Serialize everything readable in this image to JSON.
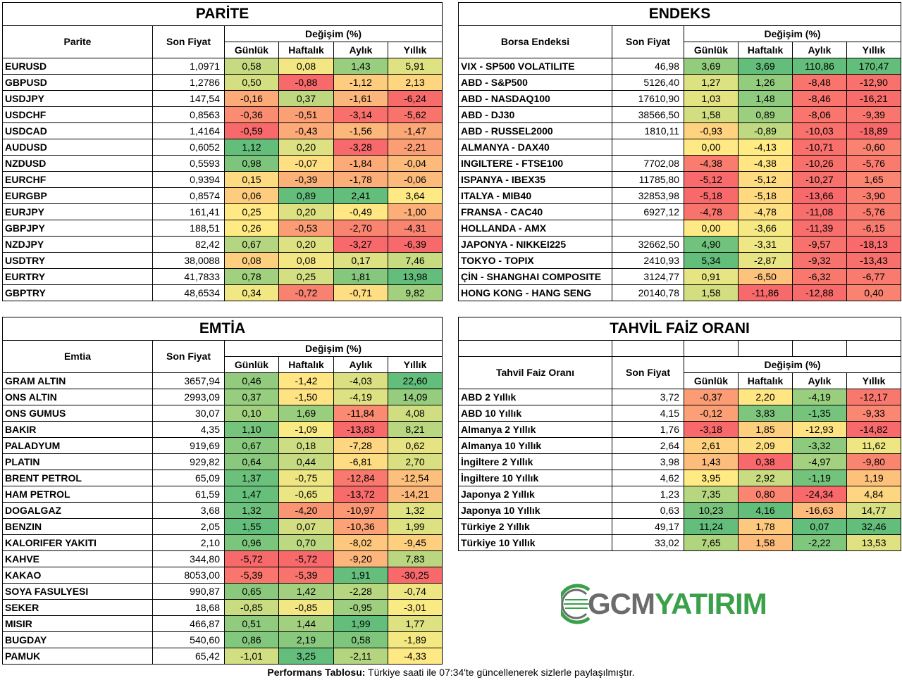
{
  "parite": {
    "title": "PARİTE",
    "col_name": "Parite",
    "col_price": "Son Fiyat",
    "col_change": "Değişim (%)",
    "periods": [
      "Günlük",
      "Haftalık",
      "Aylık",
      "Yıllık"
    ],
    "rows": [
      {
        "name": "EURUSD",
        "price": "1,0971",
        "d": "0,58",
        "w": "0,08",
        "m": "1,43",
        "y": "5,91"
      },
      {
        "name": "GBPUSD",
        "price": "1,2786",
        "d": "0,50",
        "w": "-0,88",
        "m": "-1,12",
        "y": "2,13"
      },
      {
        "name": "USDJPY",
        "price": "147,54",
        "d": "-0,16",
        "w": "0,37",
        "m": "-1,61",
        "y": "-6,24"
      },
      {
        "name": "USDCHF",
        "price": "0,8563",
        "d": "-0,36",
        "w": "-0,51",
        "m": "-3,14",
        "y": "-5,62"
      },
      {
        "name": "USDCAD",
        "price": "1,4164",
        "d": "-0,59",
        "w": "-0,43",
        "m": "-1,56",
        "y": "-1,47"
      },
      {
        "name": "AUDUSD",
        "price": "0,6052",
        "d": "1,12",
        "w": "0,20",
        "m": "-3,28",
        "y": "-2,21"
      },
      {
        "name": "NZDUSD",
        "price": "0,5593",
        "d": "0,98",
        "w": "-0,07",
        "m": "-1,84",
        "y": "-0,04"
      },
      {
        "name": "EURCHF",
        "price": "0,9394",
        "d": "0,15",
        "w": "-0,39",
        "m": "-1,78",
        "y": "-0,06"
      },
      {
        "name": "EURGBP",
        "price": "0,8574",
        "d": "0,06",
        "w": "0,89",
        "m": "2,41",
        "y": "3,64"
      },
      {
        "name": "EURJPY",
        "price": "161,41",
        "d": "0,25",
        "w": "0,20",
        "m": "-0,49",
        "y": "-1,00"
      },
      {
        "name": "GBPJPY",
        "price": "188,51",
        "d": "0,26",
        "w": "-0,53",
        "m": "-2,70",
        "y": "-4,31"
      },
      {
        "name": "NZDJPY",
        "price": "82,42",
        "d": "0,67",
        "w": "0,20",
        "m": "-3,27",
        "y": "-6,39"
      },
      {
        "name": "USDTRY",
        "price": "38,0088",
        "d": "0,08",
        "w": "0,08",
        "m": "0,17",
        "y": "7,46"
      },
      {
        "name": "EURTRY",
        "price": "41,7833",
        "d": "0,78",
        "w": "0,25",
        "m": "1,81",
        "y": "13,98"
      },
      {
        "name": "GBPTRY",
        "price": "48,6534",
        "d": "0,34",
        "w": "-0,72",
        "m": "-0,71",
        "y": "9,82"
      }
    ]
  },
  "endeks": {
    "title": "ENDEKS",
    "col_name": "Borsa Endeksi",
    "col_price": "Son Fiyat",
    "col_change": "Değişim (%)",
    "periods": [
      "Günlük",
      "Haftalık",
      "Aylık",
      "Yıllık"
    ],
    "rows": [
      {
        "name": "VIX  - SP500 VOLATILITE",
        "price": "46,98",
        "d": "3,69",
        "w": "3,69",
        "m": "110,86",
        "y": "170,47"
      },
      {
        "name": "ABD - S&P500",
        "price": "5126,40",
        "d": "1,27",
        "w": "1,26",
        "m": "-8,48",
        "y": "-12,90"
      },
      {
        "name": "ABD - NASDAQ100",
        "price": "17610,90",
        "d": "1,03",
        "w": "1,48",
        "m": "-8,46",
        "y": "-16,21"
      },
      {
        "name": "ABD - DJ30",
        "price": "38566,50",
        "d": "1,58",
        "w": "0,89",
        "m": "-8,06",
        "y": "-9,39"
      },
      {
        "name": "ABD - RUSSEL2000",
        "price": "1810,11",
        "d": "-0,93",
        "w": "-0,89",
        "m": "-10,03",
        "y": "-18,89"
      },
      {
        "name": "ALMANYA - DAX40",
        "price": "",
        "d": "0,00",
        "w": "-4,13",
        "m": "-10,71",
        "y": "-0,60"
      },
      {
        "name": "INGILTERE - FTSE100",
        "price": "7702,08",
        "d": "-4,38",
        "w": "-4,38",
        "m": "-10,26",
        "y": "-5,76"
      },
      {
        "name": "ISPANYA - IBEX35",
        "price": "11785,80",
        "d": "-5,12",
        "w": "-5,12",
        "m": "-10,27",
        "y": "1,65"
      },
      {
        "name": "ITALYA - MIB40",
        "price": "32853,98",
        "d": "-5,18",
        "w": "-5,18",
        "m": "-13,66",
        "y": "-3,90"
      },
      {
        "name": "FRANSA - CAC40",
        "price": "6927,12",
        "d": "-4,78",
        "w": "-4,78",
        "m": "-11,08",
        "y": "-5,76"
      },
      {
        "name": "HOLLANDA - AMX",
        "price": "",
        "d": "0,00",
        "w": "-3,66",
        "m": "-11,39",
        "y": "-6,15"
      },
      {
        "name": "JAPONYA - NIKKEI225",
        "price": "32662,50",
        "d": "4,90",
        "w": "-3,31",
        "m": "-9,57",
        "y": "-18,13"
      },
      {
        "name": "TOKYO - TOPIX",
        "price": "2410,93",
        "d": "5,34",
        "w": "-2,87",
        "m": "-9,32",
        "y": "-13,43"
      },
      {
        "name": "ÇİN - SHANGHAI COMPOSITE",
        "price": "3124,77",
        "d": "0,91",
        "w": "-6,50",
        "m": "-6,32",
        "y": "-6,77"
      },
      {
        "name": "HONG KONG - HANG SENG",
        "price": "20140,78",
        "d": "1,58",
        "w": "-11,86",
        "m": "-12,88",
        "y": "0,40"
      }
    ]
  },
  "emtia": {
    "title": "EMTİA",
    "col_name": "Emtia",
    "col_price": "Son Fiyat",
    "col_change": "Değişim (%)",
    "periods": [
      "Günlük",
      "Haftalık",
      "Aylık",
      "Yıllık"
    ],
    "rows": [
      {
        "name": "GRAM ALTIN",
        "price": "3657,94",
        "d": "0,46",
        "w": "-1,42",
        "m": "-4,03",
        "y": "22,60"
      },
      {
        "name": "ONS ALTIN",
        "price": "2993,09",
        "d": "0,37",
        "w": "-1,50",
        "m": "-4,19",
        "y": "14,09"
      },
      {
        "name": "ONS GUMUS",
        "price": "30,07",
        "d": "0,10",
        "w": "1,69",
        "m": "-11,84",
        "y": "4,08"
      },
      {
        "name": "BAKIR",
        "price": "4,35",
        "d": "1,10",
        "w": "-1,09",
        "m": "-13,83",
        "y": "8,21"
      },
      {
        "name": "PALADYUM",
        "price": "919,69",
        "d": "0,67",
        "w": "0,18",
        "m": "-7,28",
        "y": "0,62"
      },
      {
        "name": "PLATIN",
        "price": "929,82",
        "d": "0,64",
        "w": "0,44",
        "m": "-6,81",
        "y": "2,70"
      },
      {
        "name": "BRENT PETROL",
        "price": "65,09",
        "d": "1,37",
        "w": "-0,75",
        "m": "-12,84",
        "y": "-12,54"
      },
      {
        "name": "HAM PETROL",
        "price": "61,59",
        "d": "1,47",
        "w": "-0,65",
        "m": "-13,72",
        "y": "-14,21"
      },
      {
        "name": "DOGALGAZ",
        "price": "3,68",
        "d": "1,32",
        "w": "-4,20",
        "m": "-10,97",
        "y": "1,32"
      },
      {
        "name": "BENZIN",
        "price": "2,05",
        "d": "1,55",
        "w": "0,07",
        "m": "-10,36",
        "y": "1,99"
      },
      {
        "name": "KALORIFER YAKITI",
        "price": "2,10",
        "d": "0,96",
        "w": "0,70",
        "m": "-8,02",
        "y": "-9,45"
      },
      {
        "name": "KAHVE",
        "price": "344,80",
        "d": "-5,72",
        "w": "-5,72",
        "m": "-9,20",
        "y": "7,83"
      },
      {
        "name": "KAKAO",
        "price": "8053,00",
        "d": "-5,39",
        "w": "-5,39",
        "m": "1,91",
        "y": "-30,25"
      },
      {
        "name": "SOYA FASULYESI",
        "price": "990,87",
        "d": "0,65",
        "w": "1,42",
        "m": "-2,28",
        "y": "-0,74"
      },
      {
        "name": "SEKER",
        "price": "18,68",
        "d": "-0,85",
        "w": "-0,85",
        "m": "-0,95",
        "y": "-3,01"
      },
      {
        "name": "MISIR",
        "price": "466,87",
        "d": "0,51",
        "w": "1,44",
        "m": "1,99",
        "y": "1,77"
      },
      {
        "name": "BUGDAY",
        "price": "540,60",
        "d": "0,86",
        "w": "2,19",
        "m": "0,58",
        "y": "-1,89"
      },
      {
        "name": "PAMUK",
        "price": "65,42",
        "d": "-1,01",
        "w": "3,25",
        "m": "-2,11",
        "y": "-4,33"
      }
    ]
  },
  "tahvil": {
    "title": "TAHVİL FAİZ ORANI",
    "col_name": "Tahvil Faiz Oranı",
    "col_price": "Son Fiyat",
    "col_change": "Değişim (%)",
    "periods": [
      "Günlük",
      "Haftalık",
      "Aylık",
      "Yıllık"
    ],
    "rows": [
      {
        "name": "ABD 2 Yıllık",
        "price": "3,72",
        "d": "-0,37",
        "w": "2,20",
        "m": "-4,19",
        "y": "-12,17"
      },
      {
        "name": "ABD 10 Yıllık",
        "price": "4,15",
        "d": "-0,12",
        "w": "3,83",
        "m": "-1,35",
        "y": "-9,33"
      },
      {
        "name": "Almanya 2 Yıllık",
        "price": "1,76",
        "d": "-3,18",
        "w": "1,85",
        "m": "-12,93",
        "y": "-14,82"
      },
      {
        "name": "Almanya 10 Yıllık",
        "price": "2,64",
        "d": "2,61",
        "w": "2,09",
        "m": "-3,32",
        "y": "11,62"
      },
      {
        "name": "İngiltere 2 Yıllık",
        "price": "3,98",
        "d": "1,43",
        "w": "0,38",
        "m": "-4,97",
        "y": "-9,80"
      },
      {
        "name": "İngiltere 10 Yıllık",
        "price": "4,62",
        "d": "3,95",
        "w": "2,92",
        "m": "-1,19",
        "y": "1,19"
      },
      {
        "name": "Japonya 2 Yıllık",
        "price": "1,23",
        "d": "7,35",
        "w": "0,80",
        "m": "-24,34",
        "y": "4,84"
      },
      {
        "name": "Japonya 10 Yıllık",
        "price": "0,63",
        "d": "10,23",
        "w": "4,16",
        "m": "-16,63",
        "y": "14,77"
      },
      {
        "name": "Türkiye 2 Yıllık",
        "price": "49,17",
        "d": "11,24",
        "w": "1,78",
        "m": "0,07",
        "y": "32,46"
      },
      {
        "name": "Türkiye 10 Yıllık",
        "price": "33,02",
        "d": "7,65",
        "w": "1,58",
        "m": "-2,22",
        "y": "13,53"
      }
    ]
  },
  "logo": {
    "part1": "GCM",
    "part2": "YATIRIM",
    "color_gray": "#6b6b6b",
    "color_green": "#3aa04a"
  },
  "footer": {
    "bold": "Performans Tablosu:",
    "text": " Türkiye saati ile 07:34'te güncellenerek sizlerle paylaşılmıştır."
  },
  "colors": {
    "min": "#f8696b",
    "mid": "#ffeb84",
    "max": "#63be7b"
  }
}
